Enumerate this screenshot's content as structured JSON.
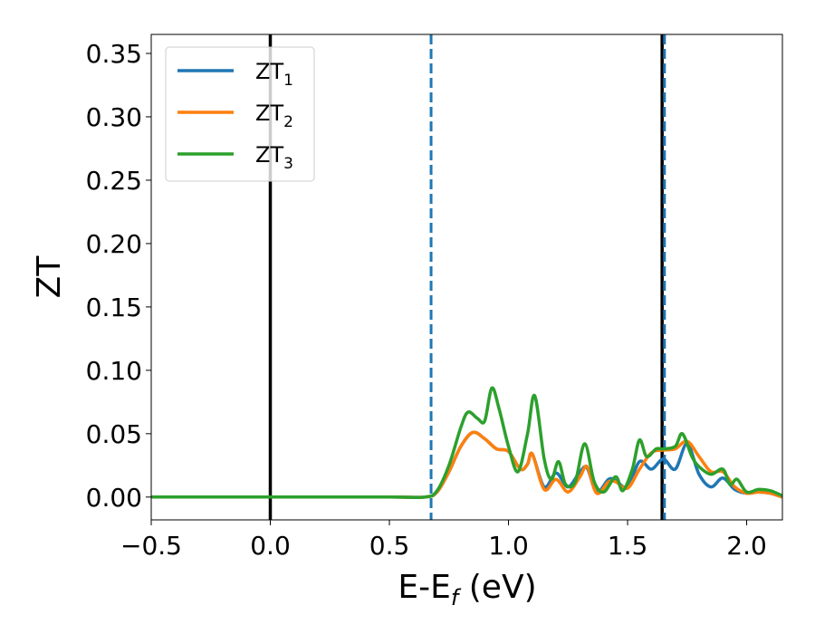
{
  "chart_data": {
    "type": "line",
    "title": "",
    "xlabel": "E-E",
    "xlabel_sub": "f",
    "xlabel_unit": " (eV)",
    "ylabel": "ZT",
    "xlim": [
      -0.5,
      2.15
    ],
    "ylim": [
      -0.018,
      0.365
    ],
    "xticks": [
      -0.5,
      0.0,
      0.5,
      1.0,
      1.5,
      2.0
    ],
    "xtick_labels": [
      "−0.5",
      "0.0",
      "0.5",
      "1.0",
      "1.5",
      "2.0"
    ],
    "yticks": [
      0.0,
      0.05,
      0.1,
      0.15,
      0.2,
      0.25,
      0.3,
      0.35
    ],
    "ytick_labels": [
      "0.00",
      "0.05",
      "0.10",
      "0.15",
      "0.20",
      "0.25",
      "0.30",
      "0.35"
    ],
    "grid": false,
    "legend_position": "top-left",
    "vlines": [
      {
        "x": 0.0,
        "color": "#000000",
        "style": "solid"
      },
      {
        "x": 1.645,
        "color": "#000000",
        "style": "solid"
      },
      {
        "x": 0.675,
        "color": "#1f77b4",
        "style": "dashed"
      },
      {
        "x": 1.655,
        "color": "#1f77b4",
        "style": "dashed"
      }
    ],
    "series": [
      {
        "name": "ZT",
        "sub": "1",
        "color": "#1f77b4",
        "x": [
          -0.5,
          0.0,
          0.5,
          0.65,
          0.7,
          0.75,
          0.8,
          0.85,
          0.9,
          0.95,
          1.0,
          1.05,
          1.08,
          1.1,
          1.15,
          1.2,
          1.25,
          1.3,
          1.33,
          1.37,
          1.42,
          1.45,
          1.5,
          1.55,
          1.6,
          1.65,
          1.7,
          1.75,
          1.8,
          1.85,
          1.9,
          1.95,
          2.0,
          2.05,
          2.1,
          2.15
        ],
        "y": [
          0.0,
          0.0,
          0.0,
          0.0,
          0.004,
          0.02,
          0.04,
          0.051,
          0.046,
          0.038,
          0.036,
          0.022,
          0.026,
          0.034,
          0.008,
          0.019,
          0.008,
          0.02,
          0.023,
          0.004,
          0.014,
          0.013,
          0.008,
          0.028,
          0.022,
          0.03,
          0.022,
          0.042,
          0.018,
          0.008,
          0.015,
          0.006,
          0.003,
          0.004,
          0.003,
          0.0
        ]
      },
      {
        "name": "ZT",
        "sub": "2",
        "color": "#ff7f0e",
        "x": [
          -0.5,
          0.0,
          0.5,
          0.65,
          0.7,
          0.75,
          0.8,
          0.85,
          0.9,
          0.95,
          1.0,
          1.05,
          1.08,
          1.1,
          1.15,
          1.2,
          1.25,
          1.3,
          1.33,
          1.37,
          1.42,
          1.45,
          1.5,
          1.55,
          1.6,
          1.65,
          1.7,
          1.75,
          1.8,
          1.85,
          1.9,
          1.95,
          2.0,
          2.05,
          2.1,
          2.15
        ],
        "y": [
          0.0,
          0.0,
          0.0,
          0.0,
          0.004,
          0.02,
          0.04,
          0.051,
          0.046,
          0.038,
          0.036,
          0.022,
          0.026,
          0.034,
          0.006,
          0.014,
          0.004,
          0.016,
          0.024,
          0.003,
          0.012,
          0.012,
          0.007,
          0.022,
          0.035,
          0.037,
          0.038,
          0.044,
          0.032,
          0.02,
          0.02,
          0.008,
          0.003,
          0.004,
          0.003,
          0.0
        ]
      },
      {
        "name": "ZT",
        "sub": "3",
        "color": "#2ca02c",
        "x": [
          -0.5,
          0.0,
          0.5,
          0.65,
          0.7,
          0.75,
          0.8,
          0.83,
          0.87,
          0.9,
          0.93,
          0.96,
          1.0,
          1.04,
          1.08,
          1.11,
          1.15,
          1.18,
          1.21,
          1.24,
          1.28,
          1.32,
          1.36,
          1.4,
          1.45,
          1.48,
          1.52,
          1.55,
          1.58,
          1.62,
          1.65,
          1.7,
          1.73,
          1.77,
          1.8,
          1.85,
          1.9,
          1.93,
          1.96,
          2.0,
          2.05,
          2.1,
          2.15
        ],
        "y": [
          0.0,
          0.0,
          0.0,
          0.0,
          0.005,
          0.025,
          0.055,
          0.067,
          0.062,
          0.06,
          0.086,
          0.07,
          0.04,
          0.02,
          0.05,
          0.08,
          0.03,
          0.014,
          0.028,
          0.01,
          0.012,
          0.042,
          0.012,
          0.004,
          0.016,
          0.005,
          0.022,
          0.045,
          0.032,
          0.038,
          0.038,
          0.04,
          0.05,
          0.032,
          0.024,
          0.018,
          0.022,
          0.01,
          0.014,
          0.004,
          0.006,
          0.005,
          0.001
        ]
      }
    ]
  }
}
